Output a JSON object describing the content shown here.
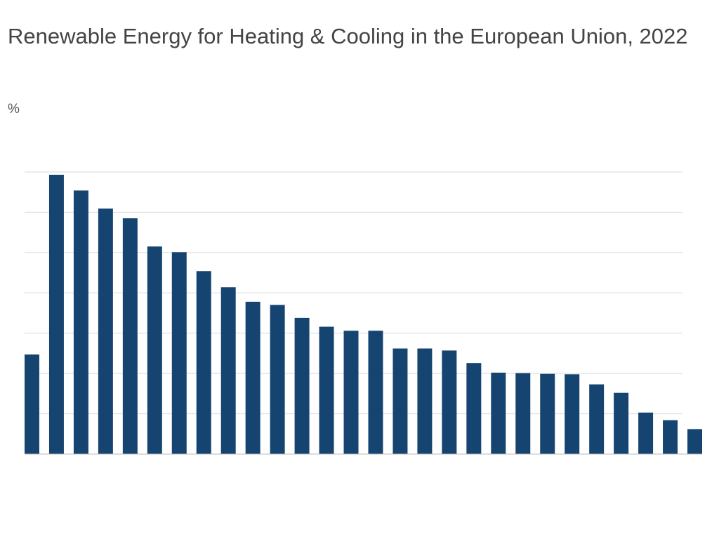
{
  "chart_data": {
    "type": "bar",
    "title": "Renewable Energy for Heating & Cooling in the European Union, 2022",
    "unit_label": "%",
    "ylim": [
      0,
      70
    ],
    "gridlines": [
      10,
      20,
      30,
      40,
      50,
      60,
      70
    ],
    "grid": true,
    "bar_color": "#154470",
    "values": [
      24.7,
      69.3,
      65.4,
      60.9,
      58.5,
      51.5,
      50.1,
      45.4,
      41.4,
      37.8,
      37.0,
      33.8,
      31.6,
      30.6,
      30.6,
      26.2,
      26.2,
      25.7,
      22.6,
      20.2,
      20.1,
      19.9,
      19.8,
      17.3,
      15.2,
      10.3,
      8.4,
      6.2
    ]
  }
}
